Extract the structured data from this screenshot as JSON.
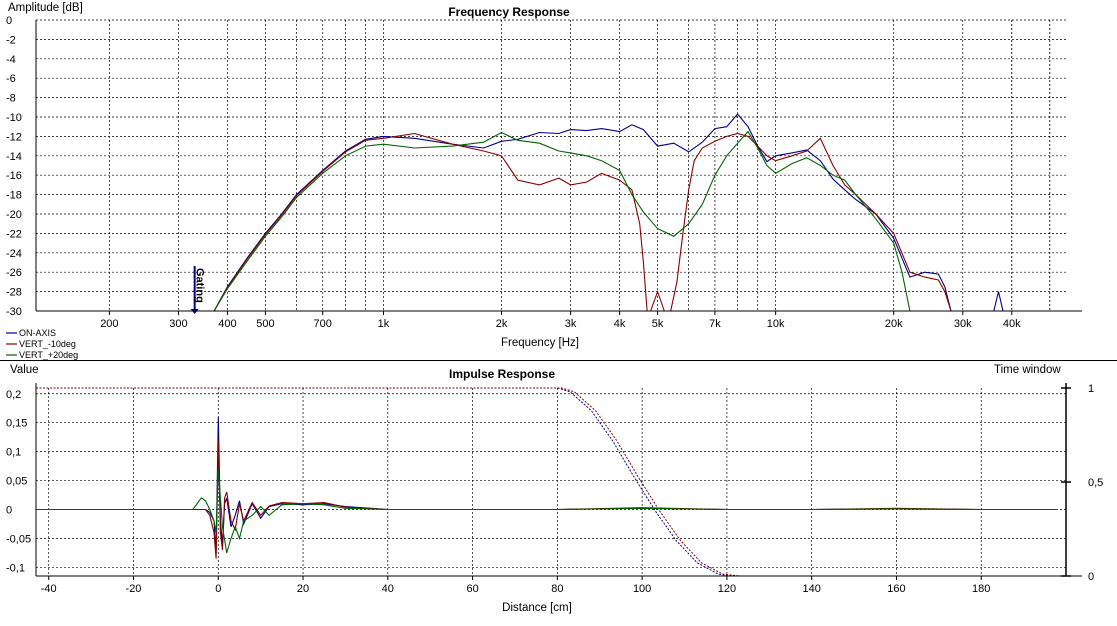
{
  "chart_data": [
    {
      "type": "line",
      "title": "Frequency Response",
      "ylabel": "Amplitude [dB]",
      "xlabel": "Frequency [Hz]",
      "xscale": "log",
      "xlim": [
        130,
        55000
      ],
      "ylim": [
        -30,
        0
      ],
      "grid": true,
      "legend_position": "bottom-left",
      "y_ticks": [
        "0",
        "-2",
        "-4",
        "-6",
        "-8",
        "-10",
        "-12",
        "-14",
        "-16",
        "-18",
        "-20",
        "-22",
        "-24",
        "-26",
        "-28",
        "-30"
      ],
      "x_tick_values": [
        200,
        300,
        400,
        500,
        700,
        1000,
        2000,
        3000,
        4000,
        5000,
        7000,
        10000,
        20000,
        30000,
        40000
      ],
      "x_tick_labels": [
        "200",
        "300",
        "400",
        "500",
        "700",
        "1k",
        "2k",
        "3k",
        "4k",
        "5k",
        "7k",
        "10k",
        "20k",
        "30k",
        "40k"
      ],
      "marker": {
        "label": "Gating",
        "x": 330
      },
      "series": [
        {
          "name": "ON-AXIS",
          "color": "#00008B",
          "x": [
            370,
            400,
            450,
            500,
            550,
            600,
            700,
            800,
            900,
            1000,
            1200,
            1500,
            1800,
            2000,
            2200,
            2500,
            2800,
            3000,
            3300,
            3600,
            4000,
            4300,
            4600,
            5000,
            5500,
            6000,
            6500,
            7000,
            7500,
            8000,
            8500,
            9000,
            9500,
            10000,
            11000,
            12000,
            13000,
            14000,
            15000,
            16000,
            18000,
            20000,
            22000,
            24000,
            26000,
            27000,
            28000,
            29000,
            34000,
            36000,
            37000,
            38000
          ],
          "values": [
            -30,
            -27.5,
            -24.5,
            -22,
            -20,
            -18,
            -15.5,
            -13.5,
            -12.3,
            -12,
            -12.2,
            -12.8,
            -13.2,
            -12.5,
            -12.3,
            -11.6,
            -11.7,
            -11.3,
            -11.4,
            -11.2,
            -11.5,
            -10.8,
            -11.3,
            -13,
            -12.7,
            -13.6,
            -12.6,
            -11.2,
            -11,
            -9.7,
            -11,
            -13,
            -14.6,
            -14,
            -13.7,
            -13.4,
            -14.5,
            -16.4,
            -17.5,
            -18.5,
            -20,
            -22.5,
            -26.5,
            -26,
            -26.2,
            -27.5,
            -30,
            -30,
            -30,
            -30,
            -28,
            -30
          ]
        },
        {
          "name": "VERT_-10deg",
          "color": "#8B0000",
          "x": [
            370,
            400,
            450,
            500,
            550,
            600,
            700,
            800,
            900,
            1000,
            1200,
            1500,
            1800,
            2000,
            2200,
            2500,
            2800,
            3000,
            3300,
            3600,
            4000,
            4300,
            4500,
            4600,
            4700,
            4800,
            5000,
            5200,
            5400,
            5600,
            5800,
            6000,
            6200,
            6500,
            7000,
            7500,
            8000,
            8500,
            9000,
            9500,
            10000,
            11000,
            12000,
            13000,
            14000,
            15000,
            16000,
            18000,
            20000,
            22000,
            24000,
            26000,
            27000,
            28000
          ],
          "values": [
            -30,
            -27.6,
            -24.6,
            -22.1,
            -20.1,
            -18.1,
            -15.6,
            -13.6,
            -12.4,
            -12.2,
            -11.7,
            -12.8,
            -13.5,
            -14,
            -16.5,
            -17,
            -16.3,
            -17,
            -16.7,
            -15.8,
            -16.5,
            -17.5,
            -21,
            -25,
            -30,
            -30,
            -28,
            -30,
            -30,
            -27,
            -22,
            -17.5,
            -14.5,
            -13.2,
            -12.5,
            -12,
            -11.7,
            -12,
            -13,
            -14,
            -14.5,
            -14,
            -13.5,
            -12.2,
            -15,
            -17,
            -18,
            -20,
            -22,
            -26,
            -26.5,
            -26.8,
            -28,
            -30
          ]
        },
        {
          "name": "VERT_+20deg",
          "color": "#006400",
          "x": [
            370,
            400,
            450,
            500,
            550,
            600,
            700,
            800,
            900,
            1000,
            1200,
            1500,
            1800,
            2000,
            2200,
            2500,
            2800,
            3000,
            3300,
            3600,
            4000,
            4300,
            4600,
            5000,
            5500,
            6000,
            6500,
            7000,
            7500,
            8000,
            8500,
            9000,
            9500,
            10000,
            11000,
            12000,
            13000,
            14000,
            15000,
            16000,
            18000,
            20000,
            21000,
            22000
          ],
          "values": [
            -30,
            -27.7,
            -24.8,
            -22.3,
            -20.3,
            -18.3,
            -15.8,
            -14,
            -13,
            -12.8,
            -13.2,
            -13,
            -12.6,
            -11.6,
            -12.4,
            -12.7,
            -13.5,
            -13.7,
            -14,
            -14.5,
            -15.5,
            -18,
            -19.8,
            -21.5,
            -22.3,
            -21,
            -19,
            -16,
            -14,
            -12.7,
            -11.5,
            -13.2,
            -15,
            -15.8,
            -14.8,
            -14.2,
            -15,
            -16,
            -16.5,
            -18,
            -20.5,
            -23,
            -26,
            -30
          ]
        }
      ]
    },
    {
      "type": "line",
      "title": "Impulse Response",
      "ylabel": "Value",
      "y2label": "Time window",
      "xlabel": "Distance [cm]",
      "xlim": [
        -43,
        200
      ],
      "ylim": [
        -0.115,
        0.21
      ],
      "y2lim": [
        0,
        1
      ],
      "grid": true,
      "y_tick_values": [
        0.2,
        0.15,
        0.1,
        0.05,
        0,
        -0.05,
        -0.1
      ],
      "y_tick_labels": [
        "0,2",
        "0,15",
        "0,1",
        "0,05",
        "0",
        "-0,05",
        "-0,1"
      ],
      "y2_tick_values": [
        1,
        0.5,
        0
      ],
      "y2_tick_labels": [
        "1",
        "0,5",
        "0"
      ],
      "x_tick_values": [
        -40,
        -20,
        0,
        20,
        40,
        60,
        80,
        100,
        120,
        140,
        160,
        180
      ],
      "x_tick_labels": [
        "-40",
        "-20",
        "0",
        "20",
        "40",
        "60",
        "80",
        "100",
        "120",
        "140",
        "160",
        "180"
      ],
      "series": [
        {
          "name": "ON-AXIS",
          "color": "#00008B",
          "x": [
            -43,
            -6,
            -3,
            -2,
            -1,
            -0.5,
            0,
            0.5,
            1,
            1.5,
            2,
            3,
            4,
            5,
            6,
            8,
            10,
            12,
            15,
            20,
            25,
            30,
            40,
            60,
            80,
            100,
            120,
            140,
            160,
            180,
            198
          ],
          "values": [
            0,
            0,
            0,
            -0.005,
            -0.02,
            -0.075,
            0.16,
            -0.02,
            -0.06,
            0.01,
            0.02,
            -0.03,
            -0.01,
            0.015,
            -0.025,
            0.01,
            -0.015,
            0.005,
            0.01,
            0.008,
            0.01,
            0.005,
            0,
            0,
            0,
            0.002,
            0,
            0,
            0.001,
            0,
            0
          ]
        },
        {
          "name": "VERT_-10deg",
          "color": "#8B0000",
          "x": [
            -43,
            -6,
            -3,
            -2,
            -1,
            -0.5,
            0,
            0.5,
            1,
            1.5,
            2,
            3,
            4,
            5,
            6,
            8,
            10,
            12,
            15,
            20,
            25,
            30,
            40,
            60,
            80,
            100,
            120,
            140,
            160,
            180,
            198
          ],
          "values": [
            0,
            0,
            0,
            -0.01,
            -0.04,
            -0.085,
            0.12,
            -0.04,
            -0.07,
            0.02,
            0.03,
            -0.02,
            -0.035,
            0.01,
            -0.02,
            0.012,
            -0.01,
            0.006,
            0.012,
            0.01,
            0.012,
            0.004,
            0,
            0,
            0,
            0.003,
            0,
            0,
            0.002,
            0,
            0
          ]
        },
        {
          "name": "VERT_+20deg",
          "color": "#006400",
          "x": [
            -43,
            -6,
            -4,
            -3,
            -2,
            -1,
            -0.5,
            0,
            0.5,
            1,
            2,
            3,
            4,
            5,
            6,
            8,
            10,
            12,
            15,
            20,
            25,
            30,
            40,
            60,
            80,
            100,
            120,
            140,
            160,
            180,
            198
          ],
          "values": [
            0,
            0,
            0.02,
            0.015,
            0,
            -0.02,
            -0.04,
            0.07,
            0.02,
            -0.03,
            -0.075,
            -0.05,
            -0.03,
            -0.05,
            -0.02,
            -0.01,
            0.005,
            -0.01,
            0.008,
            0.01,
            0.008,
            0.002,
            0,
            0,
            0,
            0.002,
            0,
            0,
            0.001,
            0,
            0
          ]
        }
      ],
      "time_window": [
        {
          "color": "#00008B",
          "x": [
            -43,
            80,
            83,
            88,
            93,
            98,
            103,
            108,
            113,
            118,
            121,
            200
          ],
          "values": [
            1,
            1,
            0.98,
            0.88,
            0.72,
            0.53,
            0.35,
            0.19,
            0.07,
            0.01,
            0,
            0
          ]
        },
        {
          "color": "#8B0000",
          "x": [
            -43,
            81,
            84,
            89,
            94,
            99,
            104,
            109,
            114,
            119,
            123,
            200
          ],
          "values": [
            1,
            1,
            0.98,
            0.88,
            0.72,
            0.53,
            0.35,
            0.19,
            0.07,
            0.01,
            0,
            0
          ]
        }
      ]
    }
  ]
}
